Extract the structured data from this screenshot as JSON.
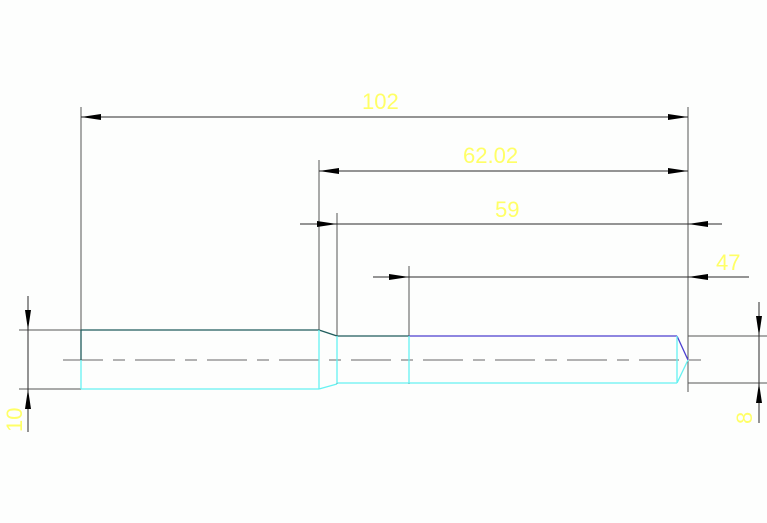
{
  "drawing": {
    "dimensions": {
      "overall_length": "102",
      "reduced_section_length": "62.02",
      "small_section_length": "59",
      "purple_section_length": "47",
      "large_diameter": "10",
      "small_diameter": "8"
    },
    "colors": {
      "dimension_text": "#ffff66",
      "outline_top": "#1f5c5c",
      "outline_bottom": "#66f2f2",
      "highlight_edge": "#4b3fd0",
      "dimension_line": "#2a2a2a"
    }
  }
}
